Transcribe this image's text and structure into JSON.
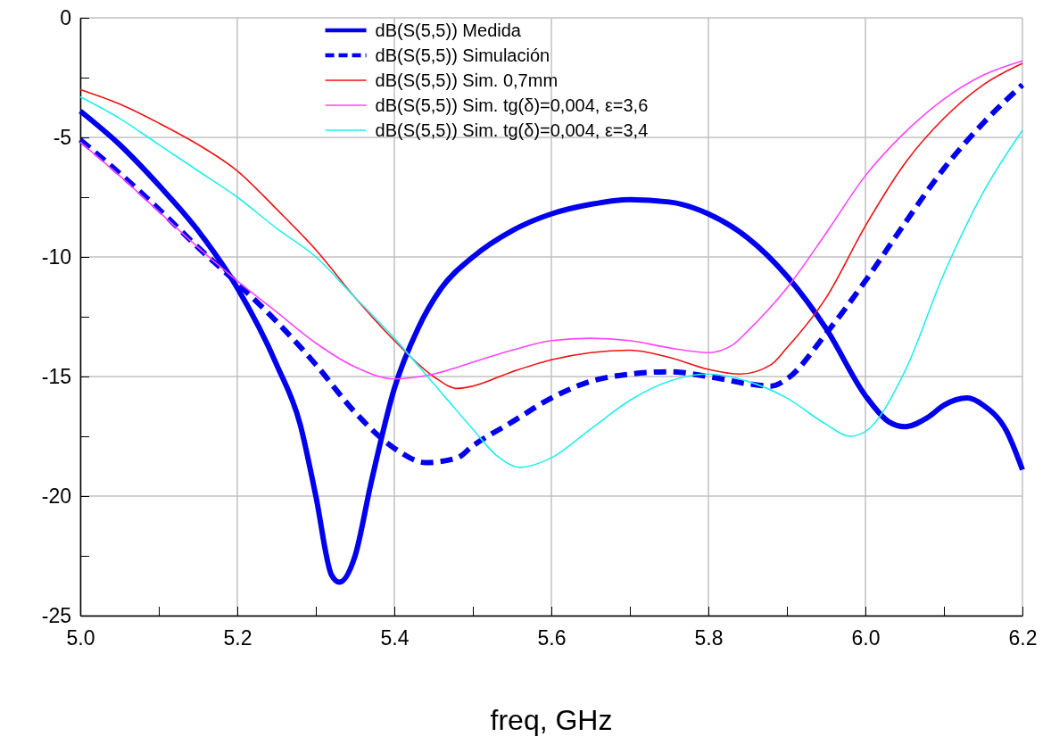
{
  "chart_data": {
    "type": "line",
    "xlabel": "freq, GHz",
    "xlim": [
      5.0,
      6.2
    ],
    "ylim": [
      -25,
      0
    ],
    "xticks": [
      {
        "value": 5.0,
        "label": "5.0"
      },
      {
        "value": 5.1,
        "label": null
      },
      {
        "value": 5.2,
        "label": "5.2"
      },
      {
        "value": 5.3,
        "label": null
      },
      {
        "value": 5.4,
        "label": "5.4"
      },
      {
        "value": 5.5,
        "label": null
      },
      {
        "value": 5.6,
        "label": "5.6"
      },
      {
        "value": 5.7,
        "label": null
      },
      {
        "value": 5.8,
        "label": "5.8"
      },
      {
        "value": 5.9,
        "label": null
      },
      {
        "value": 6.0,
        "label": "6.0"
      },
      {
        "value": 6.1,
        "label": null
      },
      {
        "value": 6.2,
        "label": "6.2"
      }
    ],
    "yticks": [
      0,
      {
        "value": -2.5,
        "label": null
      },
      -5,
      {
        "value": -7.5,
        "label": null
      },
      -10,
      {
        "value": -12.5,
        "label": null
      },
      -15,
      {
        "value": -17.5,
        "label": null
      },
      -20,
      {
        "value": -22.5,
        "label": null
      },
      -25
    ],
    "grid": true,
    "legend": "top",
    "marker": "none",
    "series": [
      {
        "name": "dB(S(5,5)) Medida",
        "color": "#0000ee",
        "line_style": "solid",
        "x": [
          5.0,
          5.05,
          5.1,
          5.15,
          5.2,
          5.25,
          5.28,
          5.3,
          5.32,
          5.33,
          5.35,
          5.37,
          5.4,
          5.43,
          5.46,
          5.5,
          5.55,
          5.6,
          5.65,
          5.7,
          5.75,
          5.8,
          5.85,
          5.9,
          5.95,
          6.0,
          6.03,
          6.05,
          6.08,
          6.1,
          6.13,
          6.15,
          6.18,
          6.2
        ],
        "values": [
          -3.9,
          -5.3,
          -7.0,
          -8.9,
          -11.3,
          -14.5,
          -17,
          -20,
          -23.3,
          -23.6,
          -22.5,
          -19.5,
          -15.5,
          -13.0,
          -11.3,
          -10.0,
          -8.9,
          -8.2,
          -7.8,
          -7.6,
          -7.7,
          -8.2,
          -9.2,
          -10.8,
          -13.0,
          -15.8,
          -16.9,
          -17.1,
          -16.7,
          -16.2,
          -15.9,
          -16.2,
          -17.3,
          -18.9
        ]
      },
      {
        "name": "dB(S(5,5)) Simulación",
        "color": "#0000ee",
        "line_style": "dashed",
        "x": [
          5.0,
          5.05,
          5.1,
          5.15,
          5.2,
          5.25,
          5.3,
          5.35,
          5.4,
          5.44,
          5.48,
          5.5,
          5.55,
          5.6,
          5.65,
          5.7,
          5.75,
          5.8,
          5.85,
          5.88,
          5.9,
          5.95,
          6.0,
          6.05,
          6.1,
          6.15,
          6.2
        ],
        "values": [
          -5.1,
          -6.5,
          -8.0,
          -9.6,
          -11.1,
          -12.7,
          -14.5,
          -16.5,
          -18.0,
          -18.6,
          -18.4,
          -17.9,
          -16.9,
          -15.9,
          -15.2,
          -14.9,
          -14.8,
          -15.0,
          -15.3,
          -15.4,
          -15.1,
          -13.2,
          -11.0,
          -8.6,
          -6.3,
          -4.4,
          -2.8
        ]
      },
      {
        "name": "dB(S(5,5)) Sim. 0,7mm",
        "color": "#ee1111",
        "line_style": "solid",
        "x": [
          5.0,
          5.05,
          5.1,
          5.15,
          5.2,
          5.25,
          5.3,
          5.35,
          5.4,
          5.45,
          5.48,
          5.5,
          5.55,
          5.6,
          5.65,
          5.7,
          5.75,
          5.8,
          5.84,
          5.88,
          5.9,
          5.95,
          6.0,
          6.05,
          6.1,
          6.15,
          6.2
        ],
        "values": [
          -3.0,
          -3.6,
          -4.4,
          -5.3,
          -6.4,
          -8.0,
          -9.7,
          -11.7,
          -13.5,
          -15.0,
          -15.5,
          -15.4,
          -14.8,
          -14.3,
          -14.0,
          -13.9,
          -14.2,
          -14.7,
          -14.9,
          -14.5,
          -13.8,
          -11.7,
          -8.7,
          -6.1,
          -4.2,
          -2.8,
          -1.9
        ]
      },
      {
        "name": "dB(S(5,5)) Sim. tg(δ)=0,004, ε=3,6",
        "color": "#ff44ff",
        "line_style": "solid",
        "x": [
          5.0,
          5.05,
          5.1,
          5.15,
          5.2,
          5.25,
          5.3,
          5.35,
          5.4,
          5.45,
          5.5,
          5.55,
          5.6,
          5.65,
          5.7,
          5.75,
          5.8,
          5.83,
          5.85,
          5.9,
          5.95,
          6.0,
          6.05,
          6.1,
          6.15,
          6.2
        ],
        "values": [
          -5.2,
          -6.6,
          -8.1,
          -9.6,
          -11.0,
          -12.3,
          -13.6,
          -14.6,
          -15.1,
          -14.9,
          -14.4,
          -13.9,
          -13.5,
          -13.4,
          -13.5,
          -13.8,
          -14.0,
          -13.7,
          -13.1,
          -11.3,
          -9.0,
          -6.6,
          -4.8,
          -3.4,
          -2.4,
          -1.8
        ]
      },
      {
        "name": "dB(S(5,5)) Sim. tg(δ)=0,004, ε=3,4",
        "color": "#22eeee",
        "line_style": "solid",
        "x": [
          5.0,
          5.05,
          5.1,
          5.15,
          5.2,
          5.25,
          5.3,
          5.35,
          5.4,
          5.45,
          5.5,
          5.53,
          5.56,
          5.6,
          5.65,
          5.7,
          5.75,
          5.8,
          5.85,
          5.9,
          5.95,
          5.98,
          6.0,
          6.05,
          6.1,
          6.15,
          6.2
        ],
        "values": [
          -3.3,
          -4.2,
          -5.3,
          -6.4,
          -7.5,
          -8.8,
          -10.0,
          -11.7,
          -13.4,
          -15.3,
          -17.2,
          -18.3,
          -18.8,
          -18.4,
          -17.2,
          -16.0,
          -15.2,
          -14.9,
          -15.2,
          -15.9,
          -17.0,
          -17.5,
          -17.3,
          -14.8,
          -10.7,
          -7.3,
          -4.7
        ]
      }
    ]
  }
}
